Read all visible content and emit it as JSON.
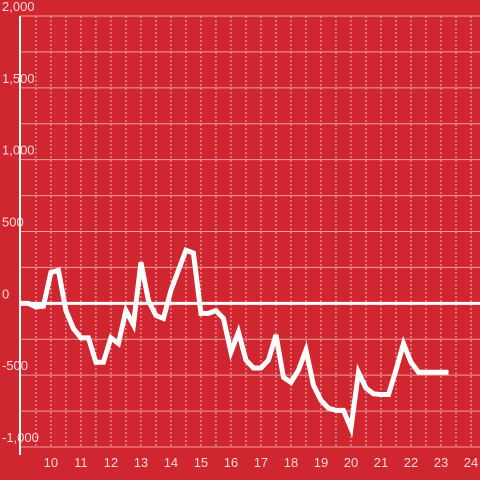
{
  "chart_data": {
    "type": "line",
    "x": [
      9,
      9.25,
      9.5,
      9.75,
      10,
      10.25,
      10.5,
      10.75,
      11,
      11.25,
      11.5,
      11.75,
      12,
      12.25,
      12.5,
      12.75,
      13,
      13.25,
      13.5,
      13.75,
      14,
      14.25,
      14.5,
      14.75,
      15,
      15.25,
      15.5,
      15.75,
      16,
      16.25,
      16.5,
      16.75,
      17,
      17.25,
      17.5,
      17.75,
      18,
      18.25,
      18.5,
      18.75,
      19,
      19.25,
      19.5,
      19.75,
      20,
      20.25,
      20.5,
      20.75,
      21,
      21.25,
      21.5,
      21.75,
      22,
      22.25,
      22.5,
      22.75,
      23,
      23.25
    ],
    "series": [
      {
        "color": "#ffffff",
        "values": [
          0,
          0,
          -25,
          -20,
          215,
          230,
          -50,
          -175,
          -240,
          -240,
          -410,
          -410,
          -240,
          -280,
          -50,
          -150,
          285,
          20,
          -85,
          -105,
          90,
          230,
          370,
          350,
          -70,
          -70,
          -50,
          -105,
          -340,
          -200,
          -395,
          -450,
          -450,
          -395,
          -220,
          -515,
          -550,
          -465,
          -325,
          -570,
          -675,
          -730,
          -745,
          -745,
          -870,
          -480,
          -590,
          -630,
          -635,
          -635,
          -465,
          -280,
          -410,
          -480,
          -480,
          -480,
          -480,
          -480
        ]
      }
    ],
    "xlim": [
      8.97,
      24.3
    ],
    "xticks": [
      10,
      11,
      12,
      13,
      14,
      15,
      16,
      17,
      18,
      19,
      20,
      21,
      22,
      23,
      24
    ],
    "xminorticks": [
      9.5,
      10.5,
      11.5,
      12.5,
      13.5,
      14.5,
      15.5,
      16.5,
      17.5,
      18.5,
      19.5,
      20.5,
      21.5,
      22.5,
      23.5
    ],
    "ylim": [
      -1000,
      2000
    ],
    "yticks": [
      {
        "value": -1000,
        "label": "-1,000"
      },
      -500,
      0,
      500,
      {
        "value": 1000,
        "label": "1,000"
      },
      {
        "value": 1500,
        "label": "1,500"
      },
      {
        "value": 2000,
        "label": "2,000"
      }
    ],
    "yminorticks": [
      -750,
      -250,
      250,
      750,
      1250,
      1750
    ],
    "background": "#d0262f",
    "grid": true
  }
}
